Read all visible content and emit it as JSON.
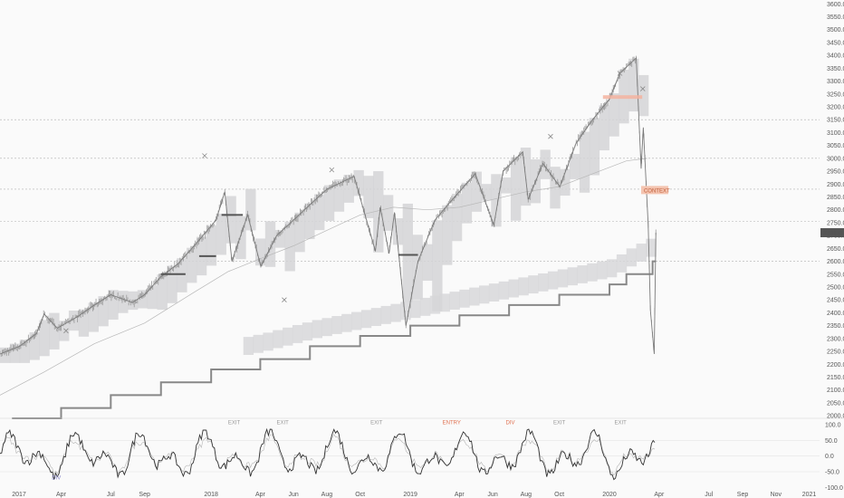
{
  "chart_data": {
    "type": "line",
    "title": "",
    "xlabel": "",
    "ylabel": "",
    "price_axis": {
      "ticks": [
        2000,
        2050,
        2100,
        2150,
        2200,
        2250,
        2300,
        2350,
        2400,
        2450,
        2500,
        2550,
        2600,
        2650,
        2700,
        2750,
        2800,
        2850,
        2900,
        2950,
        3000,
        3050,
        3100,
        3150,
        3200,
        3250,
        3300,
        3350,
        3400,
        3450,
        3500,
        3550,
        3600
      ],
      "tick_labels": [
        "2000.0",
        "2050.0",
        "2100.0",
        "2150.0",
        "2200.0",
        "2250.0",
        "2300.0",
        "2350.0",
        "2400.0",
        "2450.0",
        "2500.0",
        "2550.0",
        "2600.0",
        "2650.0",
        "2700.0",
        "2750.0",
        "2800.0",
        "2850.0",
        "2900.0",
        "2950.0",
        "3000.0",
        "3050.0",
        "3100.0",
        "3150.0",
        "3200.0",
        "3250.0",
        "3300.0",
        "3350.0",
        "3400.0",
        "3450.0",
        "3500.0",
        "3550.0",
        "3600.0"
      ],
      "ylim": [
        1990,
        3615
      ],
      "last_price": 2711,
      "last_price_label": "2711.0"
    },
    "osc_axis": {
      "ticks": [
        100,
        50,
        0,
        -50,
        -100
      ],
      "tick_labels": [
        "100.0",
        "50.0",
        "0.0",
        "-50.0",
        "-100.0"
      ],
      "ylim": [
        -105,
        115
      ]
    },
    "time_axis": {
      "labels": [
        "2017",
        "Apr",
        "Jul",
        "Sep",
        "2018",
        "Apr",
        "Jun",
        "Aug",
        "Oct",
        "2019",
        "Apr",
        "Jun",
        "Aug",
        "Oct",
        "2020",
        "Apr",
        "Jul",
        "Sep",
        "Nov",
        "2021"
      ],
      "dates": [
        "2017-01-01",
        "2017-04-01",
        "2017-07-01",
        "2017-09-01",
        "2018-01-01",
        "2018-04-01",
        "2018-06-01",
        "2018-08-01",
        "2018-10-01",
        "2019-01-01",
        "2019-04-01",
        "2019-06-01",
        "2019-08-01",
        "2019-10-01",
        "2020-01-01",
        "2020-04-01",
        "2020-07-01",
        "2020-09-01",
        "2020-11-01",
        "2021-01-01"
      ],
      "xlim": [
        "2016-12-10",
        "2021-01-20"
      ]
    },
    "horizontal_levels": [
      3150,
      3000,
      2880,
      2755,
      2600
    ],
    "price_series": {
      "name": "",
      "x": [
        "2016-12-10",
        "2017-01-15",
        "2017-02-15",
        "2017-03-01",
        "2017-03-25",
        "2017-05-01",
        "2017-06-01",
        "2017-07-01",
        "2017-08-10",
        "2017-09-01",
        "2017-10-01",
        "2017-11-01",
        "2017-12-01",
        "2018-01-10",
        "2018-01-26",
        "2018-02-08",
        "2018-03-09",
        "2018-04-02",
        "2018-05-01",
        "2018-06-01",
        "2018-07-01",
        "2018-08-01",
        "2018-09-20",
        "2018-10-10",
        "2018-10-29",
        "2018-11-07",
        "2018-11-23",
        "2018-12-03",
        "2018-12-24",
        "2019-01-15",
        "2019-02-15",
        "2019-03-15",
        "2019-04-30",
        "2019-06-03",
        "2019-06-20",
        "2019-07-26",
        "2019-08-05",
        "2019-09-01",
        "2019-10-02",
        "2019-11-01",
        "2019-12-01",
        "2020-01-01",
        "2020-01-20",
        "2020-02-19",
        "2020-02-28",
        "2020-03-03",
        "2020-03-12",
        "2020-03-16",
        "2020-03-23",
        "2020-03-26"
      ],
      "y": [
        2240,
        2270,
        2320,
        2395,
        2340,
        2385,
        2430,
        2470,
        2440,
        2470,
        2540,
        2590,
        2660,
        2760,
        2870,
        2600,
        2780,
        2580,
        2700,
        2760,
        2820,
        2880,
        2930,
        2780,
        2640,
        2810,
        2630,
        2790,
        2350,
        2600,
        2760,
        2830,
        2940,
        2740,
        2950,
        3025,
        2840,
        2980,
        2890,
        3060,
        3150,
        3230,
        3330,
        3390,
        2960,
        3120,
        2740,
        2410,
        2240,
        2711
      ]
    },
    "ma_series": {
      "name": "",
      "x": [
        "2016-12-10",
        "2017-03-01",
        "2017-06-01",
        "2017-09-01",
        "2017-12-01",
        "2018-02-01",
        "2018-04-01",
        "2018-06-01",
        "2018-08-01",
        "2018-10-01",
        "2018-12-01",
        "2019-02-01",
        "2019-04-01",
        "2019-06-01",
        "2019-08-01",
        "2019-10-01",
        "2019-12-01",
        "2020-02-01",
        "2020-03-10"
      ],
      "y": [
        2080,
        2170,
        2280,
        2360,
        2480,
        2560,
        2610,
        2660,
        2720,
        2780,
        2810,
        2800,
        2810,
        2840,
        2870,
        2890,
        2940,
        2990,
        3000
      ]
    },
    "support_steps": {
      "name": "",
      "x": [
        "2017-01-01",
        "2017-04-01",
        "2017-07-01",
        "2017-10-01",
        "2018-01-01",
        "2018-04-01",
        "2018-07-01",
        "2018-10-01",
        "2019-01-01",
        "2019-04-01",
        "2019-07-01",
        "2019-10-01",
        "2020-01-01",
        "2020-02-01",
        "2020-03-20"
      ],
      "y": [
        1990,
        2030,
        2080,
        2130,
        2180,
        2220,
        2270,
        2310,
        2350,
        2390,
        2430,
        2470,
        2510,
        2550,
        2600
      ]
    },
    "annotations": [
      "EXIT",
      "EXIT",
      "EXIT",
      "ENTRY",
      "EXIT",
      "EXIT",
      "DIV",
      "DIV",
      "CONTEXT"
    ],
    "grid": false,
    "legend": "none"
  }
}
